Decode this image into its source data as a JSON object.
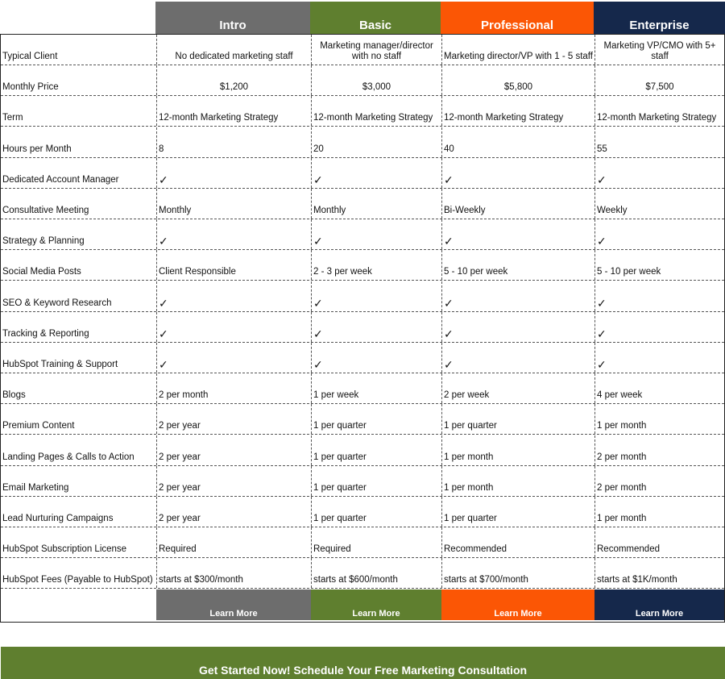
{
  "plans": [
    {
      "name": "Intro",
      "color": "#6d6d6d",
      "cta": "Learn More"
    },
    {
      "name": "Basic",
      "color": "#5f7f2f",
      "cta": "Learn More"
    },
    {
      "name": "Professional",
      "color": "#fb5605",
      "cta": "Learn More"
    },
    {
      "name": "Enterprise",
      "color": "#15284b",
      "cta": "Learn More"
    }
  ],
  "rows": [
    {
      "label": "Typical Client",
      "values": [
        "No dedicated marketing staff",
        "Marketing manager/director with no staff",
        "Marketing director/VP with 1 - 5 staff",
        "Marketing VP/CMO with 5+ staff"
      ],
      "align": "center"
    },
    {
      "label": "Monthly Price",
      "values": [
        "$1,200",
        "$3,000",
        "$5,800",
        "$7,500"
      ],
      "align": "center"
    },
    {
      "label": "Term",
      "values": [
        "12-month Marketing Strategy",
        "12-month Marketing Strategy",
        "12-month Marketing Strategy",
        "12-month Marketing Strategy"
      ]
    },
    {
      "label": "Hours per Month",
      "values": [
        "8",
        "20",
        "40",
        "55"
      ]
    },
    {
      "label": "Dedicated Account Manager",
      "values": [
        "✓",
        "✓",
        "✓",
        "✓"
      ],
      "check": true
    },
    {
      "label": "Consultative Meeting",
      "values": [
        "Monthly",
        "Monthly",
        "Bi-Weekly",
        "Weekly"
      ]
    },
    {
      "label": "Strategy & Planning",
      "values": [
        "✓",
        "✓",
        "✓",
        "✓"
      ],
      "check": true
    },
    {
      "label": "Social Media Posts",
      "values": [
        "Client Responsible",
        "2 - 3 per week",
        "5 - 10 per week",
        "5 - 10 per week"
      ]
    },
    {
      "label": "SEO & Keyword Research",
      "values": [
        "✓",
        "✓",
        "✓",
        "✓"
      ],
      "check": true
    },
    {
      "label": "Tracking & Reporting",
      "values": [
        "✓",
        "✓",
        "✓",
        "✓"
      ],
      "check": true
    },
    {
      "label": "HubSpot Training & Support",
      "values": [
        "✓",
        "✓",
        "✓",
        "✓"
      ],
      "check": true
    },
    {
      "label": "Blogs",
      "values": [
        "2 per month",
        "1 per week",
        "2 per week",
        "4 per week"
      ]
    },
    {
      "label": "Premium Content",
      "values": [
        "2 per year",
        "1 per quarter",
        "1 per quarter",
        "1 per month"
      ]
    },
    {
      "label": "Landing Pages & Calls to Action",
      "values": [
        "2 per year",
        "1 per quarter",
        "1 per month",
        "2 per month"
      ]
    },
    {
      "label": "Email Marketing",
      "values": [
        "2 per year",
        "1 per quarter",
        "1 per month",
        "2 per month"
      ]
    },
    {
      "label": "Lead Nurturing Campaigns",
      "values": [
        "2 per year",
        "1 per quarter",
        "1 per quarter",
        "1 per month"
      ]
    },
    {
      "label": "HubSpot Subscription License",
      "values": [
        "Required",
        "Required",
        "Recommended",
        "Recommended"
      ]
    },
    {
      "label": "HubSpot Fees (Payable to HubSpot)",
      "values": [
        "starts at $300/month",
        "starts at $600/month",
        "starts at $700/month",
        "starts at $1K/month"
      ]
    }
  ],
  "cta_banner": "Get Started Now! Schedule Your Free Marketing Consultation"
}
